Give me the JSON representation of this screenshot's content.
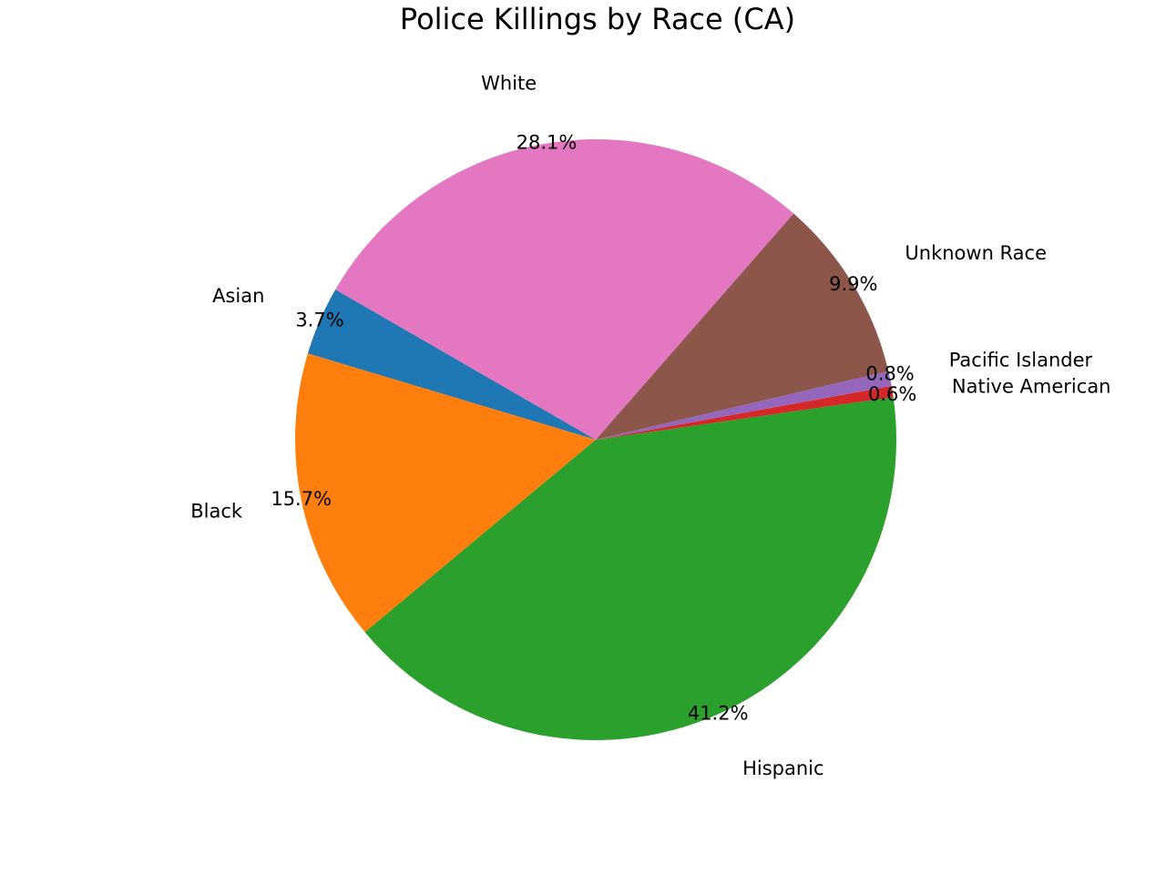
{
  "chart_data": {
    "type": "pie",
    "title": "Police Killings by Race (CA)",
    "categories": [
      "Asian",
      "Black",
      "Hispanic",
      "Native American",
      "Pacific Islander",
      "Unknown Race",
      "White"
    ],
    "values": [
      3.7,
      15.7,
      41.2,
      0.6,
      0.8,
      9.9,
      28.1
    ],
    "percent_labels": [
      "3.7%",
      "15.7%",
      "41.2%",
      "0.6%",
      "0.8%",
      "9.9%",
      "28.1%"
    ],
    "colors": [
      "#1f77b4",
      "#ff7f0e",
      "#2ca02c",
      "#d62728",
      "#9467bd",
      "#8c564b",
      "#e377c2"
    ],
    "start_angle_deg": 150,
    "direction": "counterclockwise",
    "legend": "none"
  }
}
